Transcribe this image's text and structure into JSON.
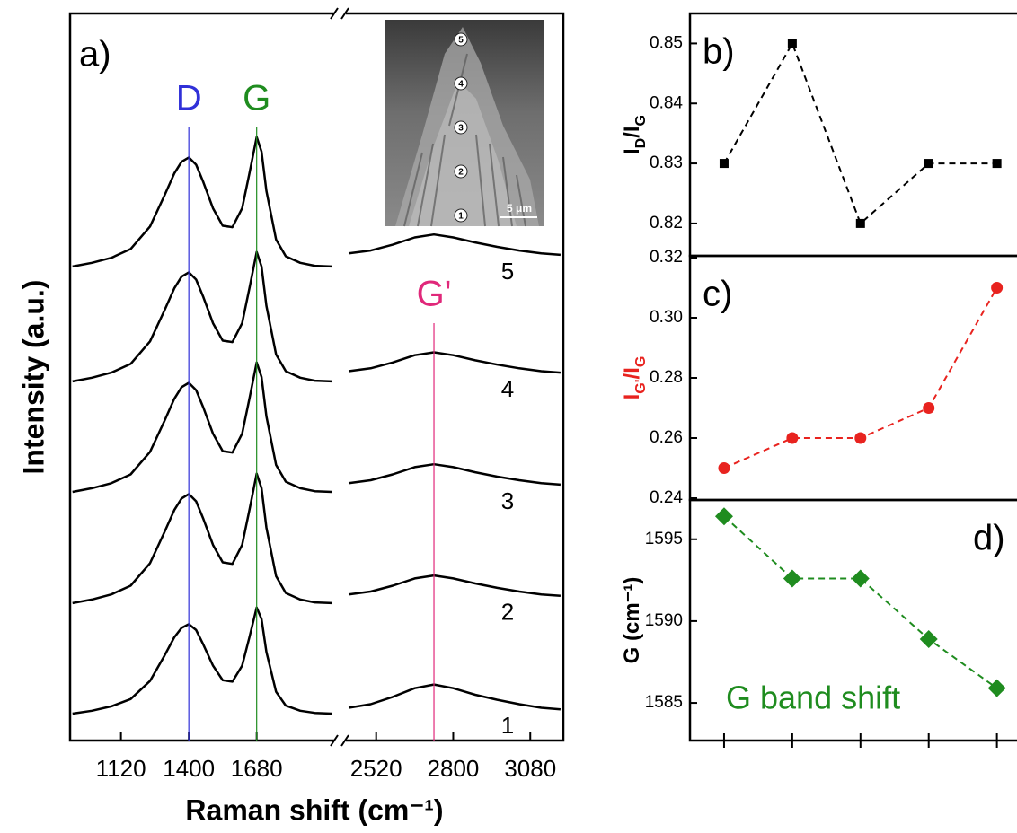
{
  "chart_data": [
    {
      "type": "broken-line",
      "panel_label": "a)",
      "ylabel": "Intensity (a.u.)",
      "xlabel": "Raman shift (cm⁻¹)",
      "color": "#000000",
      "ylim": [
        0,
        100
      ],
      "peak_lines": [
        {
          "label": "D",
          "x": 1400,
          "color": "#3030d8"
        },
        {
          "label": "G",
          "x": 1680,
          "color": "#1f8c1f"
        },
        {
          "label": "G'",
          "x": 2730,
          "color": "#e0287a"
        }
      ],
      "segments": [
        {
          "xlim": [
            910,
            2000
          ],
          "xticks": [
            1120,
            1400,
            1680
          ],
          "x": [
            920,
            1000,
            1080,
            1160,
            1240,
            1300,
            1340,
            1370,
            1400,
            1430,
            1460,
            1500,
            1540,
            1580,
            1620,
            1650,
            1680,
            1700,
            1720,
            1760,
            1800,
            1860,
            1920,
            1990
          ],
          "series": [
            {
              "values": [
                3.7,
                4.1,
                4.7,
                5.7,
                8.2,
                11.7,
                14.2,
                15.5,
                16.0,
                15.2,
                13.2,
                10.3,
                8.3,
                8.1,
                10.3,
                14.2,
                18.3,
                16.7,
                12.2,
                6.7,
                4.8,
                4.1,
                3.8,
                3.7
              ]
            },
            {
              "values": [
                18.9,
                19.4,
                20.1,
                21.3,
                24.4,
                28.7,
                31.7,
                33.3,
                33.9,
                32.9,
                30.5,
                26.9,
                24.5,
                24.3,
                26.9,
                31.7,
                36.7,
                34.7,
                29.3,
                22.6,
                20.3,
                19.4,
                19.0,
                18.9
              ]
            },
            {
              "values": [
                34.2,
                34.7,
                35.4,
                36.6,
                39.7,
                44.0,
                47.0,
                48.6,
                49.2,
                48.2,
                45.8,
                42.2,
                39.8,
                39.6,
                42.2,
                47.0,
                52.0,
                50.0,
                44.6,
                37.9,
                35.6,
                34.7,
                34.3,
                34.2
              ]
            },
            {
              "values": [
                49.4,
                49.9,
                50.6,
                51.8,
                54.9,
                59.2,
                62.2,
                63.8,
                64.4,
                63.4,
                61.0,
                57.4,
                55.0,
                54.8,
                57.4,
                62.2,
                67.2,
                65.2,
                59.8,
                53.1,
                50.8,
                49.9,
                49.5,
                49.4
              ]
            },
            {
              "values": [
                65.2,
                65.7,
                66.4,
                67.6,
                70.7,
                75.0,
                78.0,
                79.6,
                80.2,
                79.2,
                76.8,
                73.2,
                70.8,
                70.6,
                73.2,
                78.0,
                83.0,
                81.0,
                75.6,
                68.9,
                66.6,
                65.7,
                65.3,
                65.2
              ]
            }
          ]
        },
        {
          "xlim": [
            2410,
            3200
          ],
          "xticks": [
            2520,
            2800,
            3080
          ],
          "x": [
            2420,
            2500,
            2580,
            2660,
            2730,
            2800,
            2880,
            2960,
            3040,
            3120,
            3190
          ],
          "series": [
            {
              "name": "1",
              "values": [
                4.5,
                5.0,
                6.0,
                7.2,
                7.7,
                7.2,
                6.3,
                5.6,
                5.0,
                4.5,
                4.3
              ]
            },
            {
              "name": "2",
              "values": [
                20.1,
                20.5,
                21.3,
                22.3,
                22.7,
                22.3,
                21.6,
                21.0,
                20.5,
                20.1,
                19.9
              ]
            },
            {
              "name": "3",
              "values": [
                35.4,
                35.8,
                36.6,
                37.6,
                38.0,
                37.6,
                36.9,
                36.3,
                35.8,
                35.4,
                35.2
              ]
            },
            {
              "name": "4",
              "values": [
                50.8,
                51.2,
                52.0,
                53.0,
                53.4,
                53.0,
                52.3,
                51.7,
                51.2,
                50.8,
                50.6
              ]
            },
            {
              "name": "5",
              "values": [
                67.0,
                67.4,
                68.2,
                69.2,
                69.6,
                69.2,
                68.5,
                67.9,
                67.4,
                67.0,
                66.8
              ]
            }
          ]
        }
      ],
      "inset": {
        "markers": [
          "1",
          "2",
          "3",
          "4",
          "5"
        ],
        "scale_bar": "5 μm"
      }
    },
    {
      "type": "line",
      "panel_label": "b)",
      "panel_label_corner": "top-left",
      "ylabel_parts": [
        {
          "text": "I"
        },
        {
          "text": "D",
          "shift": "sub"
        },
        {
          "text": "/I"
        },
        {
          "text": "G",
          "shift": "sub"
        }
      ],
      "ylabel_color": "#000000",
      "x": [
        1,
        2,
        3,
        4,
        5
      ],
      "values": [
        0.83,
        0.85,
        0.82,
        0.83,
        0.83
      ],
      "color": "#000000",
      "marker": "square",
      "dashed": true,
      "xlim": [
        0.5,
        5.4
      ],
      "ylim": [
        0.8146,
        0.855
      ],
      "yticks": [
        0.82,
        0.83,
        0.84,
        0.85
      ]
    },
    {
      "type": "line",
      "panel_label": "c)",
      "panel_label_corner": "top-left",
      "ylabel_parts": [
        {
          "text": "I"
        },
        {
          "text": "G'",
          "shift": "sub"
        },
        {
          "text": "/I"
        },
        {
          "text": "G",
          "shift": "sub"
        }
      ],
      "ylabel_color": "#e8231f",
      "x": [
        1,
        2,
        3,
        4,
        5
      ],
      "values": [
        0.25,
        0.26,
        0.26,
        0.27,
        0.31
      ],
      "color": "#e8231f",
      "marker": "circle",
      "dashed": true,
      "xlim": [
        0.5,
        5.4
      ],
      "ylim": [
        0.2394,
        0.3206
      ],
      "yticks": [
        0.24,
        0.26,
        0.28,
        {
          "value": 0.3,
          "label": "0.30"
        },
        0.32
      ]
    },
    {
      "type": "line",
      "panel_label": "d)",
      "panel_label_corner": "top-right",
      "ylabel_parts": [
        {
          "text": "G (cm⁻¹)"
        }
      ],
      "ylabel_color": "#000000",
      "annotation": "G band shift",
      "x": [
        1,
        2,
        3,
        4,
        5
      ],
      "values": [
        1596.4,
        1592.6,
        1592.6,
        1588.9,
        1585.9
      ],
      "color": "#1f8c1f",
      "marker": "diamond",
      "dashed": true,
      "xlim": [
        0.5,
        5.4
      ],
      "xticks": [
        1,
        2,
        3,
        4,
        5
      ],
      "ylim": [
        1582.7,
        1597.4
      ],
      "yticks": [
        1585,
        1590,
        1595
      ]
    }
  ]
}
